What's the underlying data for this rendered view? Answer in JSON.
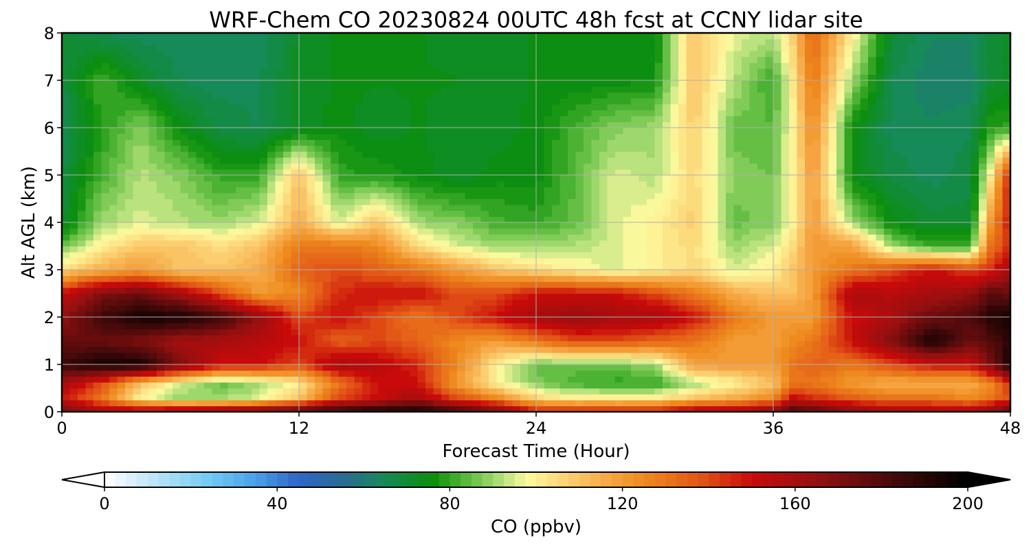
{
  "chart_data": {
    "type": "heatmap",
    "title": "WRF-Chem CO  20230824 00UTC 48h fcst at CCNY lidar site",
    "xlabel": "Forecast Time (Hour)",
    "ylabel": "Alt AGL (km)",
    "xlim": [
      0,
      48
    ],
    "ylim": [
      0,
      8
    ],
    "x_ticks": [
      0,
      12,
      24,
      36,
      48
    ],
    "y_ticks": [
      0,
      1,
      2,
      3,
      4,
      5,
      6,
      7,
      8
    ],
    "grid": true,
    "x": [
      0,
      2,
      4,
      6,
      8,
      10,
      12,
      14,
      16,
      18,
      20,
      22,
      24,
      26,
      28,
      30,
      32,
      34,
      36,
      37,
      38,
      40,
      42,
      44,
      46,
      47,
      48
    ],
    "y": [
      0,
      0.3,
      0.6,
      1.0,
      1.5,
      2.0,
      2.5,
      3.0,
      3.5,
      4.0,
      5.0,
      6.0,
      7.0,
      8.0
    ],
    "z": [
      [
        175,
        160,
        160,
        165,
        170,
        175,
        185,
        190,
        195,
        198,
        185,
        175,
        150,
        150,
        150,
        150,
        160,
        160,
        170,
        185,
        180,
        170,
        160,
        160,
        160,
        170,
        180
      ],
      [
        150,
        130,
        100,
        90,
        90,
        95,
        110,
        140,
        150,
        160,
        140,
        125,
        105,
        100,
        100,
        100,
        110,
        115,
        125,
        150,
        145,
        135,
        130,
        130,
        125,
        130,
        140
      ],
      [
        160,
        140,
        110,
        95,
        85,
        90,
        100,
        130,
        150,
        150,
        120,
        100,
        88,
        82,
        80,
        80,
        90,
        100,
        110,
        130,
        130,
        120,
        115,
        115,
        115,
        125,
        145
      ],
      [
        185,
        195,
        195,
        170,
        150,
        150,
        140,
        160,
        155,
        145,
        125,
        100,
        85,
        85,
        85,
        90,
        120,
        120,
        120,
        130,
        135,
        130,
        140,
        150,
        150,
        170,
        195
      ],
      [
        175,
        175,
        170,
        160,
        160,
        155,
        150,
        135,
        140,
        135,
        125,
        120,
        130,
        140,
        140,
        135,
        130,
        120,
        120,
        125,
        130,
        150,
        170,
        195,
        175,
        180,
        190
      ],
      [
        165,
        185,
        195,
        195,
        185,
        165,
        140,
        150,
        140,
        130,
        140,
        150,
        160,
        165,
        160,
        160,
        150,
        130,
        120,
        120,
        120,
        150,
        160,
        175,
        180,
        190,
        195
      ],
      [
        150,
        170,
        175,
        160,
        140,
        120,
        125,
        145,
        150,
        150,
        140,
        140,
        150,
        150,
        150,
        140,
        130,
        115,
        110,
        110,
        120,
        160,
        155,
        160,
        165,
        180,
        175
      ],
      [
        105,
        115,
        120,
        110,
        110,
        115,
        135,
        140,
        135,
        130,
        120,
        110,
        105,
        100,
        95,
        100,
        105,
        95,
        100,
        110,
        120,
        130,
        140,
        150,
        140,
        145,
        160
      ],
      [
        85,
        100,
        110,
        110,
        105,
        110,
        130,
        130,
        125,
        105,
        95,
        90,
        90,
        92,
        95,
        100,
        105,
        90,
        95,
        105,
        120,
        120,
        90,
        80,
        80,
        130,
        145
      ],
      [
        70,
        90,
        95,
        92,
        90,
        95,
        115,
        95,
        110,
        90,
        88,
        82,
        80,
        85,
        95,
        100,
        108,
        85,
        88,
        100,
        120,
        90,
        75,
        70,
        70,
        120,
        150
      ],
      [
        68,
        82,
        92,
        88,
        80,
        80,
        110,
        80,
        78,
        75,
        72,
        75,
        75,
        84,
        95,
        92,
        105,
        88,
        86,
        100,
        120,
        75,
        68,
        65,
        68,
        100,
        150
      ],
      [
        65,
        78,
        88,
        75,
        68,
        66,
        72,
        75,
        72,
        74,
        72,
        72,
        75,
        82,
        88,
        90,
        108,
        85,
        84,
        100,
        125,
        75,
        65,
        64,
        66,
        78,
        80
      ],
      [
        68,
        82,
        72,
        66,
        65,
        66,
        72,
        74,
        74,
        74,
        74,
        72,
        74,
        74,
        75,
        76,
        110,
        92,
        80,
        102,
        130,
        90,
        66,
        62,
        62,
        70,
        72
      ],
      [
        70,
        66,
        65,
        64,
        64,
        64,
        72,
        74,
        74,
        74,
        72,
        72,
        74,
        74,
        74,
        74,
        110,
        96,
        92,
        108,
        135,
        100,
        70,
        64,
        64,
        70,
        72
      ]
    ],
    "colorbar": {
      "label": "CO  (ppbv)",
      "vmin": 0,
      "vmax": 200,
      "ticks": [
        0,
        40,
        80,
        120,
        160,
        200
      ],
      "extend": "both",
      "colormap": [
        [
          0,
          "#ffffff"
        ],
        [
          15,
          "#a8dcf5"
        ],
        [
          25,
          "#6ec8f2"
        ],
        [
          35,
          "#4aa0e8"
        ],
        [
          45,
          "#2f66c8"
        ],
        [
          55,
          "#2b6a96"
        ],
        [
          65,
          "#168a58"
        ],
        [
          76,
          "#0a8e0a"
        ],
        [
          84,
          "#5aba3c"
        ],
        [
          92,
          "#b4e07c"
        ],
        [
          98,
          "#fffaa0"
        ],
        [
          106,
          "#fcd678"
        ],
        [
          115,
          "#f7ad4c"
        ],
        [
          125,
          "#ee8a1e"
        ],
        [
          138,
          "#e25616"
        ],
        [
          150,
          "#c80a0a"
        ],
        [
          165,
          "#951010"
        ],
        [
          182,
          "#4a0a0a"
        ],
        [
          200,
          "#000000"
        ]
      ]
    }
  }
}
